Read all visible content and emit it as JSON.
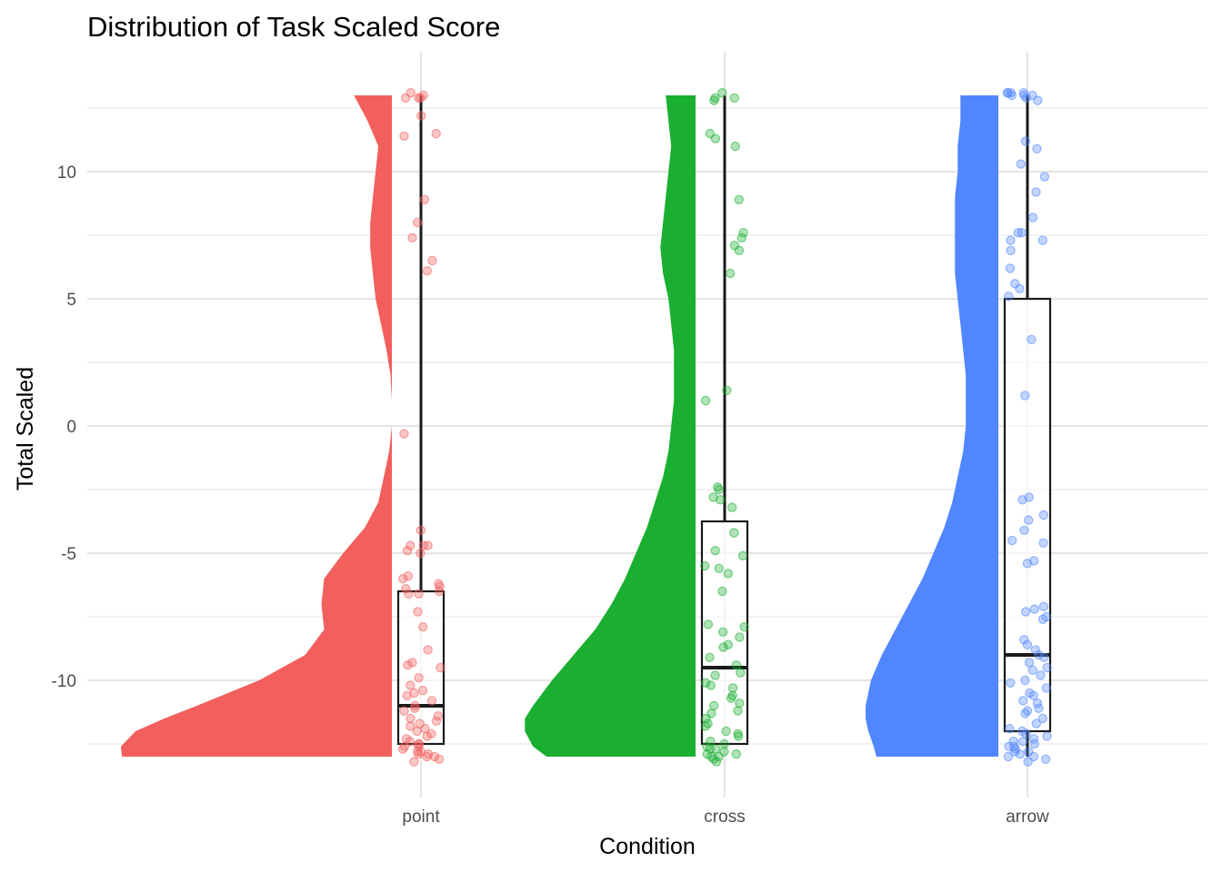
{
  "chart_data": {
    "type": "raincloud",
    "title": "Distribution of Task Scaled Score",
    "xlabel": "Condition",
    "ylabel": "Total Scaled",
    "categories": [
      "point",
      "cross",
      "arrow"
    ],
    "colors": {
      "point": "#F25F5C",
      "cross": "#1AAF30",
      "arrow": "#5086FF"
    },
    "ylim": [
      -14.5,
      14.6
    ],
    "yticks": [
      -10,
      -5,
      0,
      5,
      10
    ],
    "ytick_labels": [
      "-10",
      "-5",
      "0",
      "5",
      "10"
    ],
    "grid": true,
    "legend": "none",
    "boxplots": [
      {
        "name": "point",
        "whisker_low": -12.5,
        "q1": -12.5,
        "median": -11.0,
        "q3": -6.5,
        "whisker_high": 13.0
      },
      {
        "name": "cross",
        "whisker_low": -12.5,
        "q1": -12.5,
        "median": -9.5,
        "q3": -3.75,
        "whisker_high": 13.0
      },
      {
        "name": "arrow",
        "whisker_low": -13.0,
        "q1": -12.0,
        "median": -9.0,
        "q3": 5.0,
        "whisker_high": 13.0
      }
    ],
    "density": [
      {
        "name": "point",
        "y": [
          -13.0,
          -12.6,
          -12.0,
          -11.5,
          -11.0,
          -10.0,
          -9.0,
          -8.0,
          -7.0,
          -6.0,
          -5.0,
          -4.0,
          -3.0,
          -2.0,
          -1.0,
          0.0,
          1.0,
          2.0,
          3.0,
          4.0,
          5.0,
          6.0,
          7.0,
          8.0,
          9.0,
          10.0,
          11.0,
          12.0,
          13.0
        ],
        "width": [
          0.996,
          1.0,
          0.946,
          0.84,
          0.72,
          0.49,
          0.32,
          0.25,
          0.26,
          0.25,
          0.18,
          0.1,
          0.05,
          0.03,
          0.01,
          0.0,
          0.0,
          0.005,
          0.02,
          0.04,
          0.06,
          0.07,
          0.08,
          0.08,
          0.07,
          0.06,
          0.05,
          0.09,
          0.14
        ]
      },
      {
        "name": "cross",
        "y": [
          -13.0,
          -12.6,
          -12.0,
          -11.5,
          -11.0,
          -10.0,
          -9.0,
          -8.0,
          -7.0,
          -6.0,
          -5.0,
          -4.0,
          -3.0,
          -2.0,
          -1.0,
          0.0,
          1.0,
          2.0,
          3.0,
          4.0,
          5.0,
          6.0,
          7.0,
          8.0,
          9.0,
          10.0,
          11.0,
          12.0,
          13.0
        ],
        "width": [
          0.55,
          0.6,
          0.63,
          0.63,
          0.6,
          0.53,
          0.45,
          0.37,
          0.31,
          0.26,
          0.22,
          0.18,
          0.15,
          0.12,
          0.1,
          0.09,
          0.08,
          0.08,
          0.08,
          0.09,
          0.1,
          0.12,
          0.13,
          0.12,
          0.11,
          0.1,
          0.09,
          0.1,
          0.11
        ]
      },
      {
        "name": "arrow",
        "y": [
          -13.0,
          -12.6,
          -12.0,
          -11.5,
          -11.0,
          -10.0,
          -9.0,
          -8.0,
          -7.0,
          -6.0,
          -5.0,
          -4.0,
          -3.0,
          -2.0,
          -1.0,
          0.0,
          1.0,
          2.0,
          3.0,
          4.0,
          5.0,
          6.0,
          7.0,
          8.0,
          9.0,
          10.0,
          11.0,
          12.0,
          13.0
        ],
        "width": [
          0.45,
          0.46,
          0.48,
          0.49,
          0.49,
          0.47,
          0.43,
          0.38,
          0.33,
          0.28,
          0.24,
          0.2,
          0.17,
          0.15,
          0.13,
          0.12,
          0.12,
          0.12,
          0.13,
          0.14,
          0.15,
          0.16,
          0.16,
          0.16,
          0.16,
          0.15,
          0.15,
          0.14,
          0.14
        ]
      }
    ],
    "points": [
      {
        "name": "point",
        "values": [
          12.9,
          13.0,
          12.9,
          13.1,
          12.9,
          12.2,
          11.4,
          11.5,
          8.9,
          8.0,
          7.4,
          6.5,
          6.1,
          -0.3,
          -4.1,
          -4.7,
          -4.7,
          -4.9,
          -4.7,
          -5.0,
          -5.9,
          -6.0,
          -6.2,
          -6.3,
          -6.4,
          -6.6,
          -6.5,
          -6.6,
          -7.3,
          -7.9,
          -8.8,
          -9.3,
          -9.4,
          -9.5,
          -9.9,
          -10.2,
          -10.4,
          -10.5,
          -10.6,
          -10.8,
          -11.0,
          -11.1,
          -11.2,
          -11.4,
          -11.5,
          -11.6,
          -11.7,
          -11.8,
          -11.9,
          -12.0,
          -12.1,
          -12.2,
          -12.3,
          -12.4,
          -12.5,
          -12.6,
          -12.7,
          -12.8,
          -12.9,
          -13.0,
          -13.1,
          -13.2,
          -12.6,
          -12.8,
          -12.9,
          -13.0,
          -12.5
        ]
      },
      {
        "name": "cross",
        "values": [
          13.1,
          12.9,
          12.8,
          12.9,
          11.5,
          11.3,
          11.0,
          8.9,
          7.6,
          7.4,
          6.9,
          7.1,
          6.0,
          1.4,
          1.0,
          -2.4,
          -2.5,
          -2.8,
          -2.9,
          -3.2,
          -4.2,
          -4.9,
          -5.1,
          -5.5,
          -5.6,
          -5.8,
          -6.5,
          -7.8,
          -7.9,
          -8.1,
          -8.3,
          -8.6,
          -8.7,
          -9.1,
          -9.4,
          -9.7,
          -9.8,
          -10.1,
          -10.2,
          -10.3,
          -10.6,
          -10.7,
          -10.9,
          -11.0,
          -11.2,
          -11.3,
          -11.5,
          -11.7,
          -11.8,
          -12.0,
          -12.1,
          -12.2,
          -12.4,
          -12.5,
          -12.6,
          -12.7,
          -12.8,
          -12.9,
          -13.0,
          -13.1,
          -13.2,
          -12.9,
          -12.7,
          -13.0
        ]
      },
      {
        "name": "arrow",
        "values": [
          13.1,
          13.0,
          13.1,
          13.1,
          13.0,
          12.9,
          13.0,
          13.1,
          12.8,
          11.2,
          10.9,
          10.3,
          9.8,
          9.2,
          8.2,
          7.6,
          7.6,
          7.3,
          7.3,
          6.9,
          6.2,
          5.6,
          5.4,
          5.1,
          3.4,
          1.2,
          -2.9,
          -2.8,
          -3.5,
          -3.7,
          -4.1,
          -4.5,
          -4.6,
          -5.3,
          -5.4,
          -7.1,
          -7.2,
          -7.3,
          -7.5,
          -7.6,
          -8.4,
          -8.6,
          -8.8,
          -9.0,
          -9.1,
          -9.3,
          -9.5,
          -9.6,
          -9.8,
          -10.0,
          -10.1,
          -10.3,
          -10.5,
          -10.6,
          -10.8,
          -10.9,
          -11.1,
          -11.2,
          -11.3,
          -11.5,
          -11.7,
          -11.9,
          -12.0,
          -12.1,
          -12.2,
          -12.3,
          -12.4,
          -12.5,
          -12.6,
          -12.7,
          -12.8,
          -12.9,
          -13.0,
          -13.1,
          -13.2,
          -12.6,
          -12.4,
          -12.8,
          -13.0
        ]
      }
    ]
  }
}
